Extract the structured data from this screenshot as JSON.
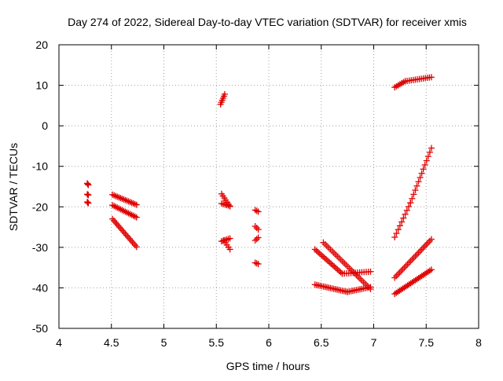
{
  "chart_data": {
    "type": "scatter",
    "title": "Day 274 of 2022, Sidereal Day-to-day VTEC variation (SDTVAR) for receiver xmis",
    "xlabel": "GPS time / hours",
    "ylabel": "SDTVAR / TECUs",
    "xlim": [
      4,
      8
    ],
    "ylim": [
      -50,
      20
    ],
    "xticks": [
      4,
      4.5,
      5,
      5.5,
      6,
      6.5,
      7,
      7.5,
      8
    ],
    "xtick_labels": [
      "4",
      "4.5",
      "5",
      "5.5",
      "6",
      "6.5",
      "7",
      "7.5",
      "8"
    ],
    "yticks": [
      -50,
      -40,
      -30,
      -20,
      -10,
      0,
      10,
      20
    ],
    "ytick_labels": [
      "-50",
      "-40",
      "-30",
      "-20",
      "-10",
      "0",
      "10",
      "20"
    ],
    "grid": true,
    "marker": "+",
    "marker_color": "#e00000",
    "segments": [
      {
        "x0": 4.27,
        "y0": -14.2,
        "x1": 4.28,
        "y1": -14.6,
        "n": 3
      },
      {
        "x0": 4.27,
        "y0": -16.9,
        "x1": 4.28,
        "y1": -17.1,
        "n": 3
      },
      {
        "x0": 4.27,
        "y0": -18.8,
        "x1": 4.28,
        "y1": -19.1,
        "n": 3
      },
      {
        "x0": 4.51,
        "y0": -17.0,
        "x1": 4.74,
        "y1": -19.5,
        "n": 16
      },
      {
        "x0": 4.51,
        "y0": -19.6,
        "x1": 4.74,
        "y1": -22.6,
        "n": 16
      },
      {
        "x0": 4.51,
        "y0": -23.0,
        "x1": 4.74,
        "y1": -29.9,
        "n": 18
      },
      {
        "x0": 5.54,
        "y0": 5.3,
        "x1": 5.58,
        "y1": 7.8,
        "n": 6
      },
      {
        "x0": 5.55,
        "y0": -16.8,
        "x1": 5.63,
        "y1": -19.9,
        "n": 7
      },
      {
        "x0": 5.55,
        "y0": -19.2,
        "x1": 5.63,
        "y1": -19.8,
        "n": 6
      },
      {
        "x0": 5.55,
        "y0": -28.5,
        "x1": 5.63,
        "y1": -27.8,
        "n": 6
      },
      {
        "x0": 5.57,
        "y0": -28.3,
        "x1": 5.63,
        "y1": -30.5,
        "n": 5
      },
      {
        "x0": 5.87,
        "y0": -20.8,
        "x1": 5.9,
        "y1": -21.2,
        "n": 3
      },
      {
        "x0": 5.87,
        "y0": -24.8,
        "x1": 5.9,
        "y1": -25.6,
        "n": 3
      },
      {
        "x0": 5.87,
        "y0": -28.3,
        "x1": 5.9,
        "y1": -27.6,
        "n": 3
      },
      {
        "x0": 5.87,
        "y0": -33.8,
        "x1": 5.9,
        "y1": -34.1,
        "n": 3
      },
      {
        "x0": 6.44,
        "y0": -39.2,
        "x1": 6.75,
        "y1": -41.0,
        "n": 20
      },
      {
        "x0": 6.75,
        "y0": -41.0,
        "x1": 6.97,
        "y1": -39.8,
        "n": 14
      },
      {
        "x0": 6.44,
        "y0": -30.5,
        "x1": 6.7,
        "y1": -36.5,
        "n": 18
      },
      {
        "x0": 6.7,
        "y0": -36.5,
        "x1": 6.97,
        "y1": -36.0,
        "n": 14
      },
      {
        "x0": 6.52,
        "y0": -28.8,
        "x1": 6.97,
        "y1": -40.3,
        "n": 28
      },
      {
        "x0": 7.2,
        "y0": 9.5,
        "x1": 7.3,
        "y1": 11.0,
        "n": 7
      },
      {
        "x0": 7.3,
        "y0": 11.0,
        "x1": 7.55,
        "y1": 12.0,
        "n": 14
      },
      {
        "x0": 7.2,
        "y0": -27.5,
        "x1": 7.35,
        "y1": -19.0,
        "n": 10
      },
      {
        "x0": 7.35,
        "y0": -19.0,
        "x1": 7.55,
        "y1": -5.5,
        "n": 14
      },
      {
        "x0": 7.2,
        "y0": -37.5,
        "x1": 7.55,
        "y1": -28.0,
        "n": 24
      },
      {
        "x0": 7.2,
        "y0": -41.5,
        "x1": 7.55,
        "y1": -35.5,
        "n": 24
      }
    ]
  }
}
